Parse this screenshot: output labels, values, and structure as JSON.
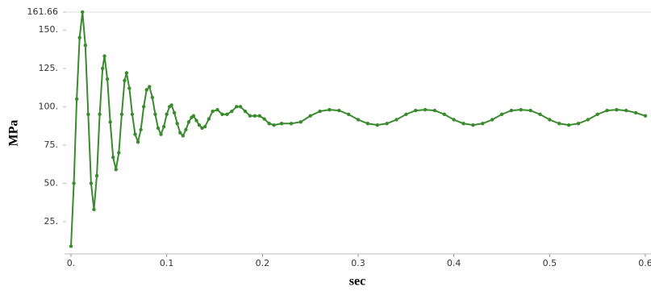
{
  "chart_data": {
    "type": "line",
    "xlabel": "sec",
    "ylabel": "MPa",
    "x": [
      0,
      0.003,
      0.006,
      0.009,
      0.012,
      0.015,
      0.018,
      0.021,
      0.024,
      0.027,
      0.03,
      0.033,
      0.035,
      0.038,
      0.041,
      0.044,
      0.047,
      0.05,
      0.053,
      0.056,
      0.058,
      0.061,
      0.064,
      0.067,
      0.07,
      0.073,
      0.076,
      0.079,
      0.082,
      0.085,
      0.088,
      0.091,
      0.094,
      0.097,
      0.1,
      0.103,
      0.105,
      0.108,
      0.111,
      0.114,
      0.117,
      0.12,
      0.123,
      0.126,
      0.128,
      0.131,
      0.134,
      0.137,
      0.14,
      0.144,
      0.148,
      0.153,
      0.158,
      0.163,
      0.168,
      0.173,
      0.177,
      0.182,
      0.187,
      0.192,
      0.197,
      0.202,
      0.207,
      0.212,
      0.22,
      0.23,
      0.24,
      0.25,
      0.26,
      0.27,
      0.28,
      0.29,
      0.3,
      0.31,
      0.32,
      0.33,
      0.34,
      0.35,
      0.36,
      0.37,
      0.38,
      0.39,
      0.4,
      0.41,
      0.42,
      0.43,
      0.44,
      0.45,
      0.46,
      0.47,
      0.48,
      0.49,
      0.5,
      0.51,
      0.52,
      0.53,
      0.54,
      0.55,
      0.56,
      0.57,
      0.58,
      0.59,
      0.6
    ],
    "series": [
      {
        "color": "#3a8a2e",
        "values": [
          9,
          50,
          105,
          145,
          161.66,
          140,
          95,
          50,
          33,
          55,
          95,
          125,
          133,
          118,
          90,
          67,
          59,
          70,
          95,
          117,
          122,
          112,
          95,
          82,
          77,
          85,
          100,
          111,
          113,
          106,
          95,
          86,
          82,
          87,
          95,
          100,
          101,
          96,
          89,
          83,
          81,
          85,
          90,
          93,
          94,
          91,
          88,
          86,
          87,
          92,
          97,
          98,
          95,
          95,
          97,
          100,
          100,
          97,
          94,
          94,
          94,
          92,
          89,
          88,
          89,
          89,
          90,
          94,
          97,
          98,
          97.5,
          95,
          91.5,
          89,
          88,
          89,
          91.5,
          95,
          97.5,
          98,
          97.5,
          95,
          91.5,
          89,
          88,
          89,
          91.5,
          95,
          97.5,
          98,
          97.5,
          95,
          91.5,
          89,
          88,
          89,
          91.5,
          95,
          97.5,
          98,
          97.5,
          96,
          94
        ]
      }
    ],
    "xlim": [
      0,
      0.6
    ],
    "ylim": [
      4,
      161.66
    ],
    "xticks": [
      {
        "value": 0,
        "label": "0."
      },
      0.1,
      0.2,
      0.3,
      0.4,
      0.5,
      0.6
    ],
    "yticks": [
      {
        "value": 25,
        "label": "25."
      },
      {
        "value": 50,
        "label": "50."
      },
      {
        "value": 75,
        "label": "75."
      },
      {
        "value": 100,
        "label": "100."
      },
      {
        "value": 125,
        "label": "125."
      },
      {
        "value": 150,
        "label": "150."
      },
      161.66
    ]
  }
}
